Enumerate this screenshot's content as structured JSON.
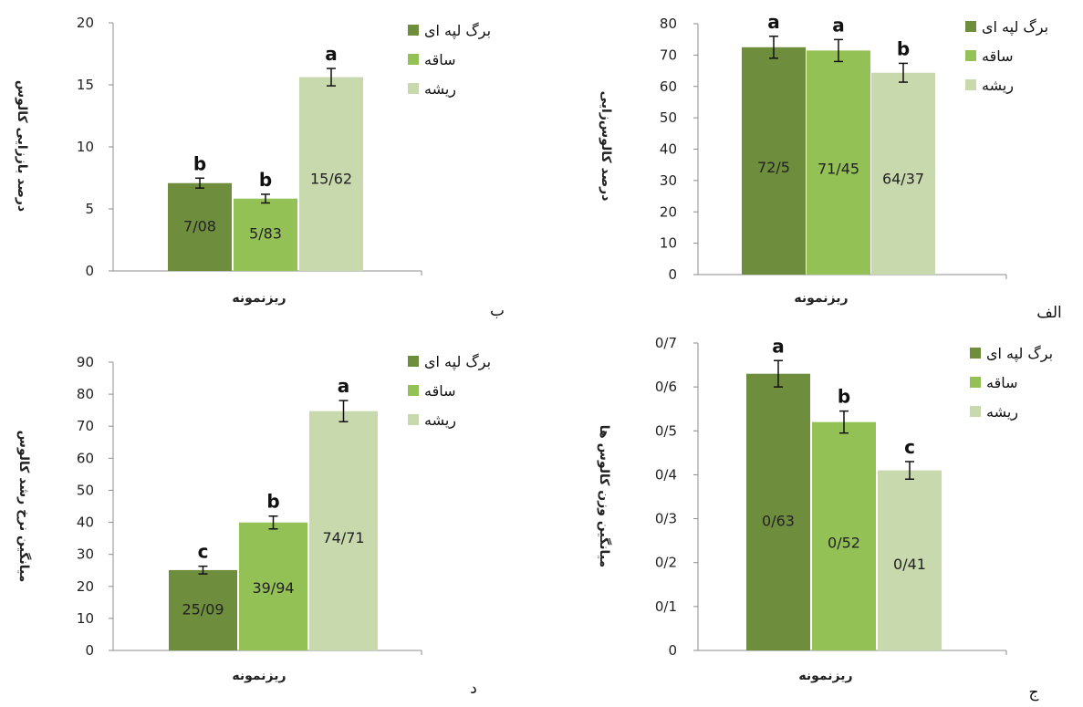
{
  "colors": {
    "leaf": "#6E8E3E",
    "stem": "#94C155",
    "root": "#C8D9AE",
    "axis": "#8C8C8C"
  },
  "chart_data": [
    {
      "type": "bar",
      "panel_label": "الف",
      "ylabel": "درصد کالوس‌زایی",
      "xlabel": "ریزنمونه",
      "ylim": [
        0,
        80
      ],
      "yticks": [
        "0",
        "10",
        "20",
        "30",
        "40",
        "50",
        "60",
        "70",
        "80"
      ],
      "ystep": 10,
      "legend": [
        "برگ لپه ای",
        "ساقه",
        "ریشه"
      ],
      "series": [
        {
          "name": "برگ لپه ای",
          "value": 72.5,
          "label": "72/5",
          "error": 3.5,
          "letter": "a"
        },
        {
          "name": "ساقه",
          "value": 71.45,
          "label": "71/45",
          "error": 3.5,
          "letter": "a"
        },
        {
          "name": "ریشه",
          "value": 64.37,
          "label": "64/37",
          "error": 3.0,
          "letter": "b"
        }
      ]
    },
    {
      "type": "bar",
      "panel_label": "ب",
      "ylabel": "درصد باززایی کالوس",
      "xlabel": "ریزنمونه",
      "ylim": [
        0,
        20
      ],
      "yticks": [
        "0",
        "5",
        "10",
        "15",
        "20"
      ],
      "ystep": 5,
      "legend": [
        "برگ لپه ای",
        "ساقه",
        "ریشه"
      ],
      "series": [
        {
          "name": "برگ لپه ای",
          "value": 7.08,
          "label": "7/08",
          "error": 0.4,
          "letter": "b"
        },
        {
          "name": "ساقه",
          "value": 5.83,
          "label": "5/83",
          "error": 0.35,
          "letter": "b"
        },
        {
          "name": "ریشه",
          "value": 15.62,
          "label": "15/62",
          "error": 0.7,
          "letter": "a"
        }
      ]
    },
    {
      "type": "bar",
      "panel_label": "ج",
      "ylabel": "میانگین وزن کالوس ها",
      "xlabel": "ریزنمونه",
      "ylim": [
        0,
        0.7
      ],
      "yticks": [
        "0",
        "0/1",
        "0/2",
        "0/3",
        "0/4",
        "0/5",
        "0/6",
        "0/7"
      ],
      "ystep": 0.1,
      "legend": [
        "برگ لپه ای",
        "ساقه",
        "ریشه"
      ],
      "series": [
        {
          "name": "برگ لپه ای",
          "value": 0.63,
          "label": "0/63",
          "error": 0.03,
          "letter": "a"
        },
        {
          "name": "ساقه",
          "value": 0.52,
          "label": "0/52",
          "error": 0.025,
          "letter": "b"
        },
        {
          "name": "ریشه",
          "value": 0.41,
          "label": "0/41",
          "error": 0.02,
          "letter": "c"
        }
      ]
    },
    {
      "type": "bar",
      "panel_label": "د",
      "ylabel": "میانگین نرخ رشد کالوس",
      "xlabel": "ریزنمونه",
      "ylim": [
        0,
        90
      ],
      "yticks": [
        "0",
        "10",
        "20",
        "30",
        "40",
        "50",
        "60",
        "70",
        "80",
        "90"
      ],
      "ystep": 10,
      "legend": [
        "برگ لپه ای",
        "ساقه",
        "ریشه"
      ],
      "series": [
        {
          "name": "برگ لپه ای",
          "value": 25.09,
          "label": "25/09",
          "error": 1.2,
          "letter": "c"
        },
        {
          "name": "ساقه",
          "value": 39.94,
          "label": "39/94",
          "error": 2.0,
          "letter": "b"
        },
        {
          "name": "ریشه",
          "value": 74.71,
          "label": "74/71",
          "error": 3.3,
          "letter": "a"
        }
      ]
    }
  ]
}
